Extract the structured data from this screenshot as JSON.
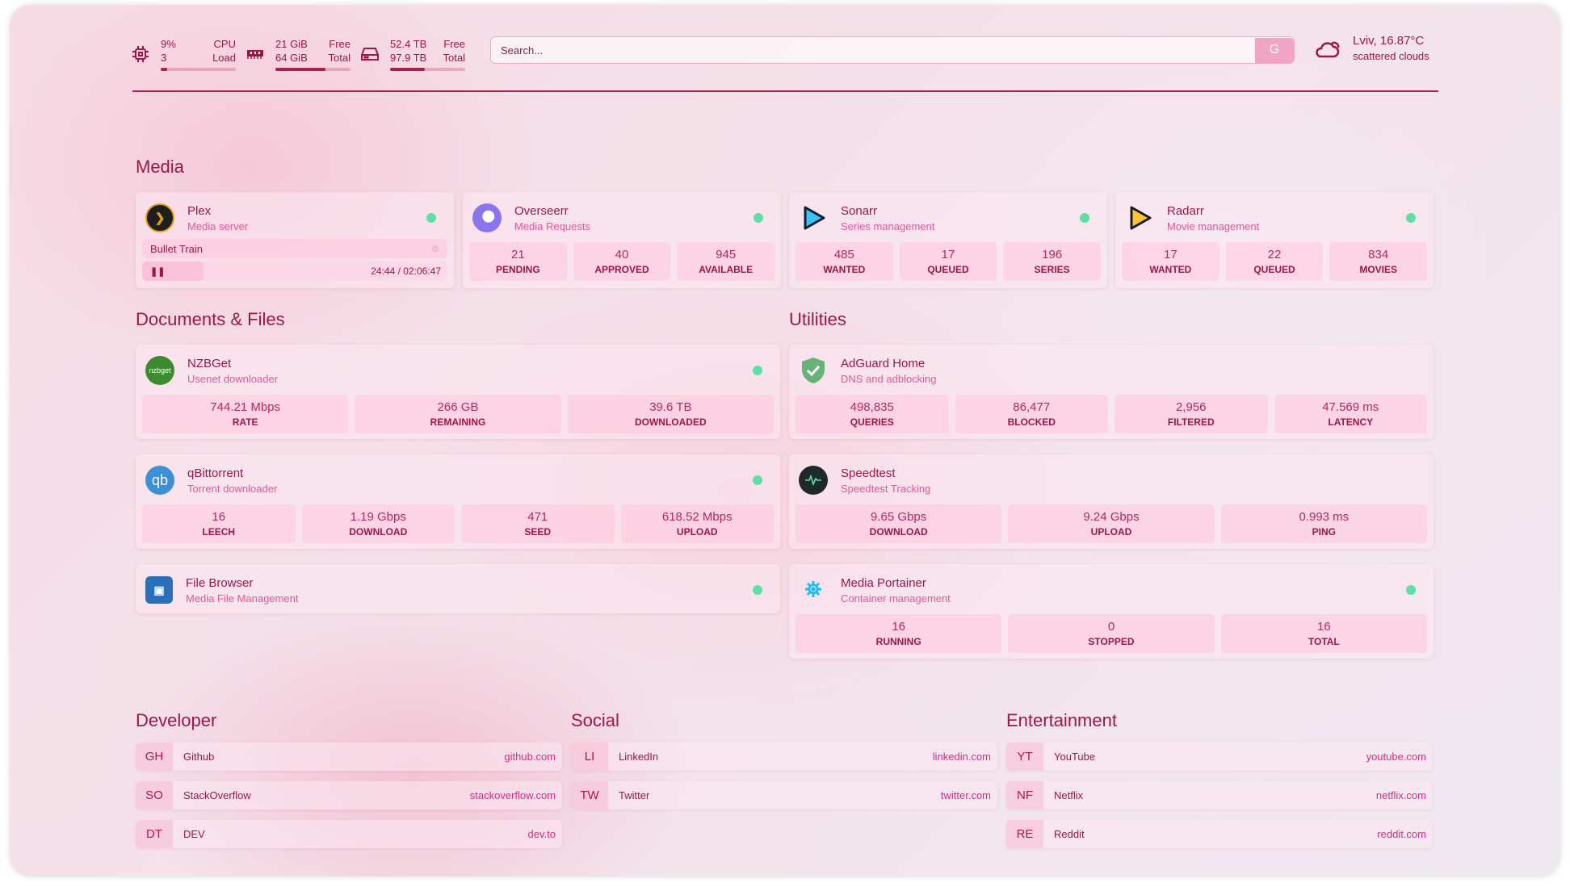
{
  "header": {
    "cpu": {
      "icon": "cpu-icon",
      "value": "9%",
      "label": "CPU",
      "value2": "3",
      "label2": "Load",
      "usage_percent": 9
    },
    "memory": {
      "icon": "ram-icon",
      "value": "21 GiB",
      "label": "Free",
      "value2": "64 GiB",
      "label2": "Total",
      "usage_percent": 67
    },
    "disk": {
      "icon": "hard-drive-icon",
      "value": "52.4 TB",
      "label": "Free",
      "value2": "97.9 TB",
      "label2": "Total",
      "usage_percent": 46
    },
    "search": {
      "placeholder": "Search...",
      "engine_button": "G"
    },
    "weather": {
      "icon": "cloud-sun-icon",
      "location_temp": "Lviv, 16.87°C",
      "condition": "scattered clouds"
    }
  },
  "colors": {
    "accent": "#9c1646",
    "subtitle": "#e4559a",
    "status_online": "#5ee0a4"
  },
  "media": {
    "title": "Media",
    "cards": [
      {
        "name": "Plex",
        "desc": "Media server",
        "icon": "plex-icon",
        "now_playing": {
          "title": "Bullet Train",
          "time": "24:44 / 02:06:47",
          "progress_percent": 20
        }
      },
      {
        "name": "Overseerr",
        "desc": "Media Requests",
        "icon": "overseerr-icon",
        "stats": [
          {
            "v": "21",
            "l": "PENDING"
          },
          {
            "v": "40",
            "l": "APPROVED"
          },
          {
            "v": "945",
            "l": "AVAILABLE"
          }
        ]
      },
      {
        "name": "Sonarr",
        "desc": "Series management",
        "icon": "sonarr-icon",
        "stats": [
          {
            "v": "485",
            "l": "WANTED"
          },
          {
            "v": "17",
            "l": "QUEUED"
          },
          {
            "v": "196",
            "l": "SERIES"
          }
        ]
      },
      {
        "name": "Radarr",
        "desc": "Movie management",
        "icon": "radarr-icon",
        "stats": [
          {
            "v": "17",
            "l": "WANTED"
          },
          {
            "v": "22",
            "l": "QUEUED"
          },
          {
            "v": "834",
            "l": "MOVIES"
          }
        ]
      }
    ]
  },
  "docs": {
    "title": "Documents & Files",
    "cards": [
      {
        "name": "NZBGet",
        "desc": "Usenet downloader",
        "icon_text": "nzbget",
        "stats": [
          {
            "v": "744.21 Mbps",
            "l": "RATE"
          },
          {
            "v": "266 GB",
            "l": "REMAINING"
          },
          {
            "v": "39.6 TB",
            "l": "DOWNLOADED"
          }
        ]
      },
      {
        "name": "qBittorrent",
        "desc": "Torrent downloader",
        "icon_text": "qb",
        "stats": [
          {
            "v": "16",
            "l": "LEECH"
          },
          {
            "v": "1.19 Gbps",
            "l": "DOWNLOAD"
          },
          {
            "v": "471",
            "l": "SEED"
          },
          {
            "v": "618.52 Mbps",
            "l": "UPLOAD"
          }
        ]
      },
      {
        "name": "File Browser",
        "desc": "Media File Management"
      }
    ]
  },
  "utilities": {
    "title": "Utilities",
    "cards": [
      {
        "name": "AdGuard Home",
        "desc": "DNS and adblocking",
        "stats": [
          {
            "v": "498,835",
            "l": "QUERIES"
          },
          {
            "v": "86,477",
            "l": "BLOCKED"
          },
          {
            "v": "2,956",
            "l": "FILTERED"
          },
          {
            "v": "47.569 ms",
            "l": "LATENCY"
          }
        ]
      },
      {
        "name": "Speedtest",
        "desc": "Speedtest Tracking",
        "stats": [
          {
            "v": "9.65 Gbps",
            "l": "DOWNLOAD"
          },
          {
            "v": "9.24 Gbps",
            "l": "UPLOAD"
          },
          {
            "v": "0.993 ms",
            "l": "PING"
          }
        ]
      },
      {
        "name": "Media Portainer",
        "desc": "Container management",
        "stats": [
          {
            "v": "16",
            "l": "RUNNING"
          },
          {
            "v": "0",
            "l": "STOPPED"
          },
          {
            "v": "16",
            "l": "TOTAL"
          }
        ]
      }
    ]
  },
  "bookmarks": [
    {
      "title": "Developer",
      "links": [
        {
          "ab": "GH",
          "name": "Github",
          "url": "github.com"
        },
        {
          "ab": "SO",
          "name": "StackOverflow",
          "url": "stackoverflow.com"
        },
        {
          "ab": "DT",
          "name": "DEV",
          "url": "dev.to"
        }
      ]
    },
    {
      "title": "Social",
      "links": [
        {
          "ab": "LI",
          "name": "LinkedIn",
          "url": "linkedin.com"
        },
        {
          "ab": "TW",
          "name": "Twitter",
          "url": "twitter.com"
        }
      ]
    },
    {
      "title": "Entertainment",
      "links": [
        {
          "ab": "YT",
          "name": "YouTube",
          "url": "youtube.com"
        },
        {
          "ab": "NF",
          "name": "Netflix",
          "url": "netflix.com"
        },
        {
          "ab": "RE",
          "name": "Reddit",
          "url": "reddit.com"
        }
      ]
    }
  ]
}
